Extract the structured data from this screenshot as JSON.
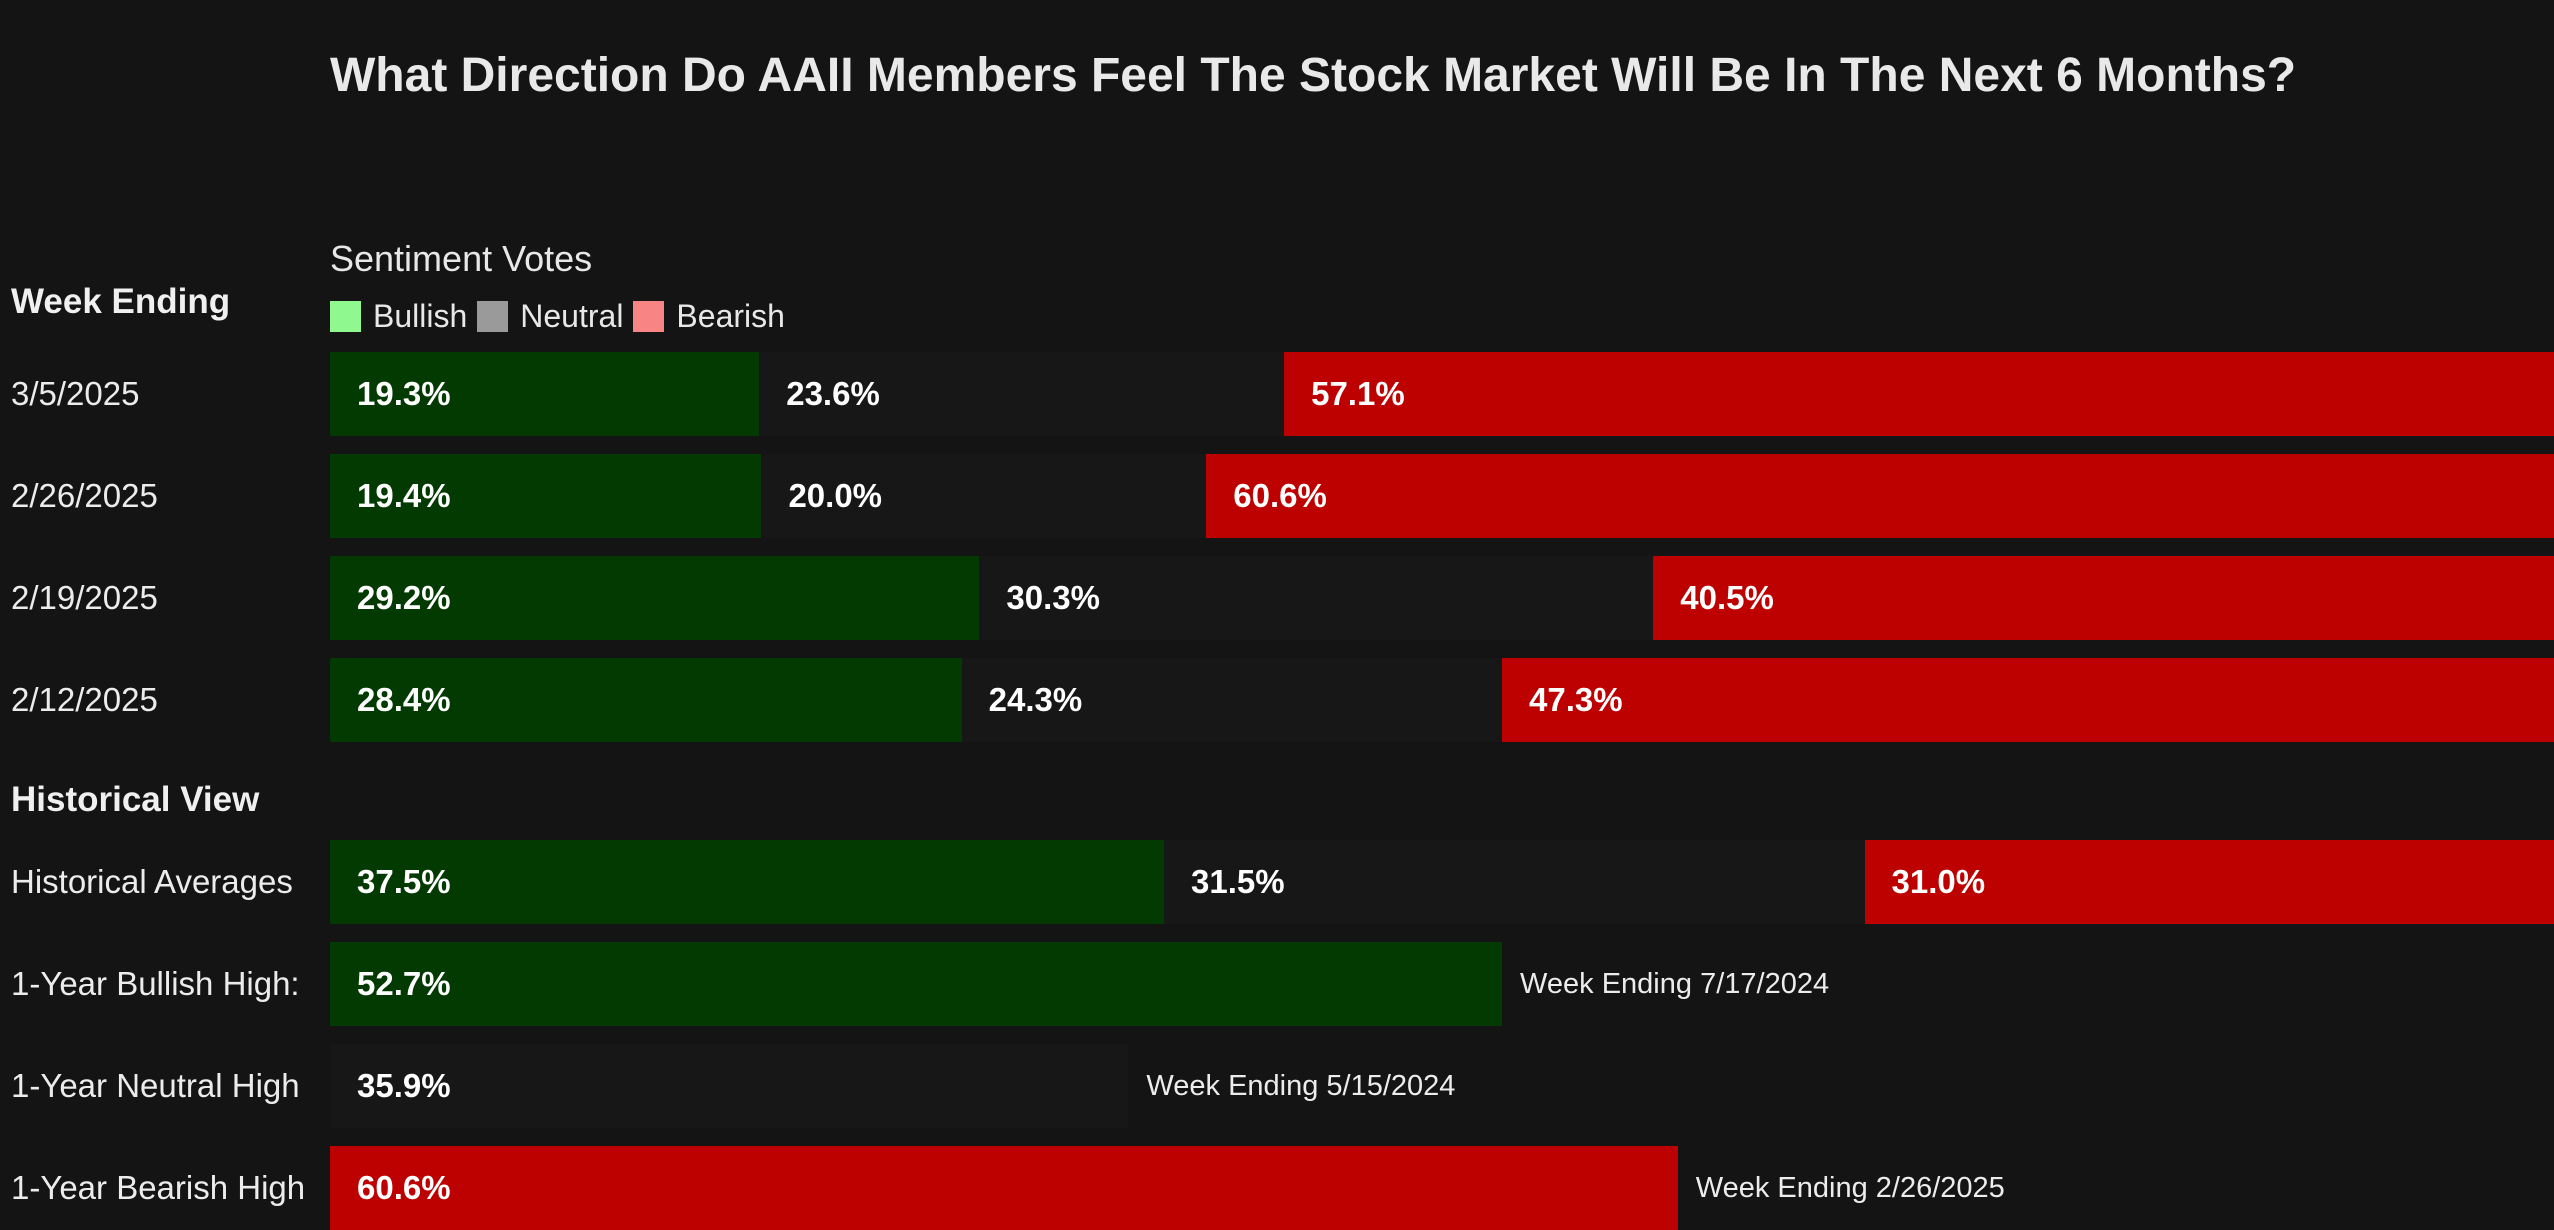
{
  "chart_data": {
    "type": "bar",
    "orientation": "horizontal",
    "stacked": true,
    "title": "What Direction Do AAII Members Feel The Stock Market Will Be In The Next 6 Months?",
    "legend_title": "Sentiment Votes",
    "legend_placement": "top-left",
    "legend": [
      {
        "name": "Bullish",
        "color": "#8ff88f"
      },
      {
        "name": "Neutral",
        "color": "#9a9a9a"
      },
      {
        "name": "Bearish",
        "color": "#f88484"
      }
    ],
    "week_header": "Week Ending",
    "historical_header": "Historical View",
    "colors": {
      "bullish_bar": "#023a02",
      "neutral_bar": "#171717",
      "bearish_bar": "#bd0000",
      "background": "#141414"
    },
    "weekly": [
      {
        "label": "3/5/2025",
        "bullish": 19.3,
        "neutral": 23.6,
        "bearish": 57.1
      },
      {
        "label": "2/26/2025",
        "bullish": 19.4,
        "neutral": 20.0,
        "bearish": 60.6
      },
      {
        "label": "2/19/2025",
        "bullish": 29.2,
        "neutral": 30.3,
        "bearish": 40.5
      },
      {
        "label": "2/12/2025",
        "bullish": 28.4,
        "neutral": 24.3,
        "bearish": 47.3
      }
    ],
    "historical_averages": {
      "label": "Historical Averages",
      "bullish": 37.5,
      "neutral": 31.5,
      "bearish": 31.0
    },
    "highs": [
      {
        "label": "1-Year Bullish High:",
        "kind": "bullish",
        "value": 52.7,
        "note": "Week Ending 7/17/2024"
      },
      {
        "label": "1-Year Neutral High",
        "kind": "neutral",
        "value": 35.9,
        "note": "Week Ending 5/15/2024"
      },
      {
        "label": "1-Year Bearish High",
        "kind": "bearish",
        "value": 60.6,
        "note": "Week Ending 2/26/2025"
      }
    ]
  }
}
